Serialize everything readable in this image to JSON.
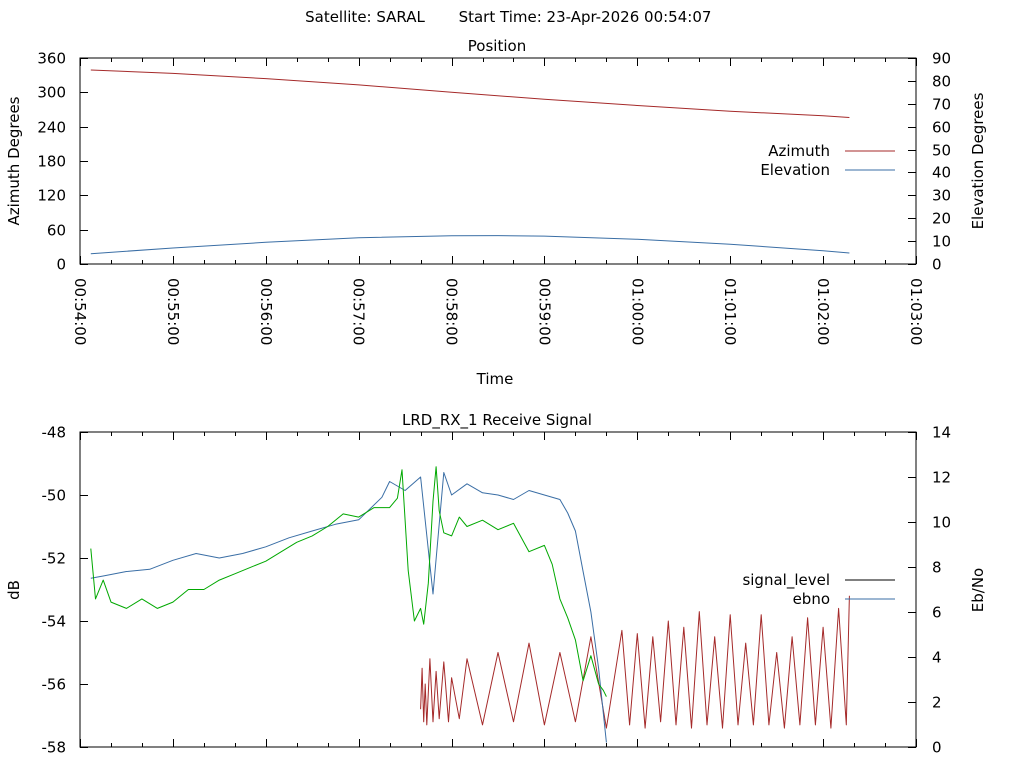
{
  "header": {
    "satellite": "Satellite: SARAL",
    "start_time": "Start Time: 23-Apr-2026 00:54:07"
  },
  "chart_data": [
    {
      "type": "line",
      "title": "Position",
      "xlabel": "Time",
      "ylabel": "Azimuth Degrees",
      "y2label": "Elevation Degrees",
      "xlim": [
        "00:54:00",
        "01:03:00"
      ],
      "x_ticks": [
        "00:54:00",
        "00:55:00",
        "00:56:00",
        "00:57:00",
        "00:58:00",
        "00:59:00",
        "01:00:00",
        "01:01:00",
        "01:02:00",
        "01:03:00"
      ],
      "ylim": [
        0,
        360
      ],
      "y_ticks": [
        "0",
        "60",
        "120",
        "180",
        "240",
        "300",
        "360"
      ],
      "y2lim": [
        0,
        90
      ],
      "y2_ticks": [
        "0",
        "10",
        "20",
        "30",
        "40",
        "50",
        "60",
        "70",
        "80",
        "90"
      ],
      "legend": "right",
      "series": [
        {
          "name": "Azimuth",
          "axis": "y",
          "color": "#a52a2a",
          "x": [
            "00:54:07",
            "00:55:00",
            "00:56:00",
            "00:57:00",
            "00:58:00",
            "00:59:00",
            "01:00:00",
            "01:01:00",
            "01:02:00",
            "01:02:17"
          ],
          "values": [
            339,
            333,
            324,
            313,
            300,
            288,
            277,
            267,
            259,
            256
          ]
        },
        {
          "name": "Elevation",
          "axis": "y2",
          "color": "#3a6ea5",
          "x": [
            "00:54:07",
            "00:55:00",
            "00:56:00",
            "00:57:00",
            "00:58:00",
            "00:58:30",
            "00:59:00",
            "01:00:00",
            "01:01:00",
            "01:02:00",
            "01:02:17"
          ],
          "values": [
            4.5,
            7,
            9.5,
            11.5,
            12.3,
            12.4,
            12.2,
            10.8,
            8.6,
            5.8,
            4.8
          ]
        }
      ]
    },
    {
      "type": "line",
      "title": "LRD_RX_1 Receive Signal",
      "ylabel": "dB",
      "y2label": "Eb/No",
      "xlim": [
        "00:54:00",
        "01:03:00"
      ],
      "ylim": [
        -58,
        -48
      ],
      "y_ticks": [
        "-48",
        "-50",
        "-52",
        "-54",
        "-56",
        "-58"
      ],
      "y2lim": [
        0,
        14
      ],
      "y2_ticks": [
        "0",
        "2",
        "4",
        "6",
        "8",
        "10",
        "12",
        "14"
      ],
      "legend": "right",
      "series": [
        {
          "name": "signal_level",
          "axis": "y",
          "color": "#a52a2a",
          "legend_color": "#000000",
          "x": [
            "00:57:40",
            "00:57:41",
            "00:57:42",
            "00:57:43",
            "00:57:44",
            "00:57:46",
            "00:57:48",
            "00:57:50",
            "00:57:52",
            "00:57:55",
            "00:57:58",
            "00:58:00",
            "00:58:05",
            "00:58:10",
            "00:58:20",
            "00:58:30",
            "00:58:40",
            "00:58:50",
            "00:59:00",
            "00:59:10",
            "00:59:20",
            "00:59:30",
            "00:59:40",
            "00:59:50",
            "00:59:55",
            "01:00:00",
            "01:00:05",
            "01:00:10",
            "01:00:15",
            "01:00:20",
            "01:00:25",
            "01:00:30",
            "01:00:35",
            "01:00:40",
            "01:00:45",
            "01:00:50",
            "01:00:55",
            "01:01:00",
            "01:01:05",
            "01:01:10",
            "01:01:15",
            "01:01:20",
            "01:01:25",
            "01:01:30",
            "01:01:35",
            "01:01:40",
            "01:01:45",
            "01:01:50",
            "01:01:55",
            "01:02:00",
            "01:02:05",
            "01:02:10",
            "01:02:15",
            "01:02:17"
          ],
          "values": [
            -56.8,
            -55.5,
            -57.2,
            -56.0,
            -57.3,
            -55.2,
            -57.2,
            -55.6,
            -57.1,
            -55.3,
            -57.2,
            -55.8,
            -57.1,
            -55.2,
            -57.3,
            -55.0,
            -57.2,
            -54.7,
            -57.3,
            -55.0,
            -57.2,
            -54.5,
            -57.4,
            -54.3,
            -57.3,
            -54.4,
            -57.4,
            -54.5,
            -57.2,
            -54.0,
            -57.3,
            -54.2,
            -57.4,
            -53.7,
            -57.3,
            -54.5,
            -57.4,
            -53.8,
            -57.3,
            -54.7,
            -57.3,
            -53.8,
            -57.3,
            -55.0,
            -57.4,
            -54.5,
            -57.3,
            -53.9,
            -57.3,
            -54.2,
            -57.4,
            -53.6,
            -57.3,
            -53.2
          ]
        },
        {
          "name": "ebno",
          "axis": "y2",
          "color": "#3a6ea5",
          "x": [
            "00:54:07",
            "00:54:15",
            "00:54:30",
            "00:54:45",
            "00:55:00",
            "00:55:15",
            "00:55:30",
            "00:55:45",
            "00:56:00",
            "00:56:15",
            "00:56:30",
            "00:56:45",
            "00:57:00",
            "00:57:15",
            "00:57:20",
            "00:57:30",
            "00:57:40",
            "00:57:48",
            "00:57:55",
            "00:58:00",
            "00:58:10",
            "00:58:20",
            "00:58:30",
            "00:58:40",
            "00:58:50",
            "00:59:00",
            "00:59:10",
            "00:59:15",
            "00:59:20",
            "00:59:25",
            "00:59:30",
            "00:59:35",
            "00:59:40"
          ],
          "values": [
            7.5,
            7.6,
            7.8,
            7.9,
            8.3,
            8.6,
            8.4,
            8.6,
            8.9,
            9.3,
            9.6,
            9.9,
            10.1,
            11.1,
            11.8,
            11.4,
            12.0,
            6.8,
            12.2,
            11.2,
            11.7,
            11.3,
            11.2,
            11.0,
            11.4,
            11.2,
            11.0,
            10.4,
            9.6,
            7.8,
            6.0,
            3.5,
            0.2
          ]
        },
        {
          "name": "",
          "axis": "y",
          "color": "#00a800",
          "x": [
            "00:54:07",
            "00:54:10",
            "00:54:15",
            "00:54:20",
            "00:54:30",
            "00:54:40",
            "00:54:50",
            "00:55:00",
            "00:55:10",
            "00:55:20",
            "00:55:30",
            "00:55:40",
            "00:55:50",
            "00:56:00",
            "00:56:10",
            "00:56:20",
            "00:56:30",
            "00:56:40",
            "00:56:50",
            "00:57:00",
            "00:57:10",
            "00:57:20",
            "00:57:25",
            "00:57:28",
            "00:57:32",
            "00:57:36",
            "00:57:40",
            "00:57:42",
            "00:57:45",
            "00:57:48",
            "00:57:50",
            "00:57:52",
            "00:57:55",
            "00:58:00",
            "00:58:05",
            "00:58:10",
            "00:58:20",
            "00:58:30",
            "00:58:40",
            "00:58:50",
            "00:59:00",
            "00:59:05",
            "00:59:10",
            "00:59:15",
            "00:59:20",
            "00:59:25",
            "00:59:30",
            "00:59:35",
            "00:59:38",
            "00:59:40"
          ],
          "values": [
            -51.7,
            -53.3,
            -52.7,
            -53.4,
            -53.6,
            -53.3,
            -53.6,
            -53.4,
            -53.0,
            -53.0,
            -52.7,
            -52.5,
            -52.3,
            -52.1,
            -51.8,
            -51.5,
            -51.3,
            -51.0,
            -50.6,
            -50.7,
            -50.4,
            -50.4,
            -50.1,
            -49.2,
            -52.4,
            -54.0,
            -53.6,
            -54.1,
            -52.8,
            -50.2,
            -49.1,
            -50.5,
            -51.2,
            -51.3,
            -50.7,
            -51.0,
            -50.8,
            -51.1,
            -50.9,
            -51.8,
            -51.6,
            -52.2,
            -53.3,
            -53.9,
            -54.6,
            -55.9,
            -55.1,
            -56.0,
            -56.2,
            -56.4
          ]
        }
      ]
    }
  ]
}
